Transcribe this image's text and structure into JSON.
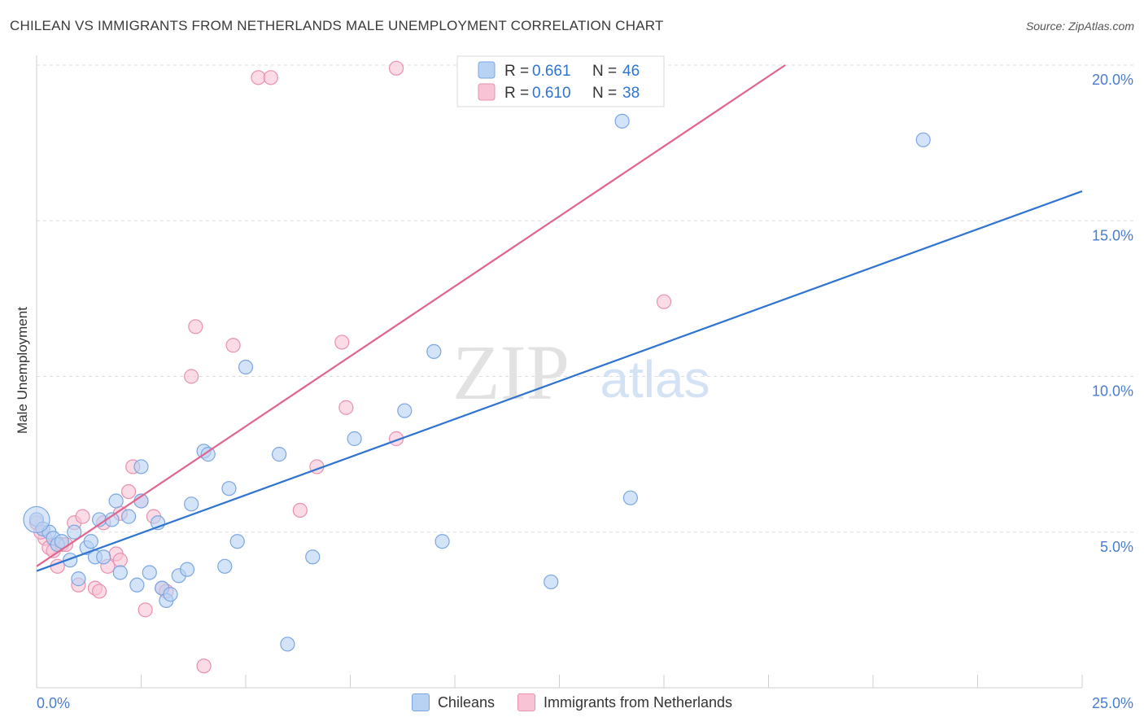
{
  "header": {
    "title": "CHILEAN VS IMMIGRANTS FROM NETHERLANDS MALE UNEMPLOYMENT CORRELATION CHART",
    "source": "Source: ZipAtlas.com"
  },
  "watermark": {
    "zip": "ZIP",
    "atlas": "atlas"
  },
  "colors": {
    "blue_fill": "#b8d2f3",
    "blue_stroke": "#7aa6e0",
    "blue_line": "#2f74d0",
    "pink_fill": "#f7c3d5",
    "pink_stroke": "#e890b0",
    "pink_line": "#e0648e",
    "grid": "#dcdcdc",
    "tick_text": "#4a7cd0"
  },
  "chart_data": {
    "type": "scatter",
    "title": "CHILEAN VS IMMIGRANTS FROM NETHERLANDS MALE UNEMPLOYMENT CORRELATION CHART",
    "xlabel": "",
    "ylabel": "Male Unemployment",
    "xlim": [
      0,
      25
    ],
    "ylim": [
      0,
      20
    ],
    "x_tick_labels": [
      "0.0%",
      "25.0%"
    ],
    "y_ticks": [
      5,
      10,
      15,
      20
    ],
    "y_tick_labels": [
      "5.0%",
      "10.0%",
      "15.0%",
      "20.0%"
    ],
    "legend": [
      {
        "name": "Chileans",
        "r_label": "R =",
        "r": "0.661",
        "n_label": "N =",
        "n": "46"
      },
      {
        "name": "Immigrants from Netherlands",
        "r_label": "R =",
        "r": "0.610",
        "n_label": "N =",
        "n": "38"
      }
    ],
    "series": [
      {
        "name": "Chileans",
        "trend": {
          "x": [
            0,
            25
          ],
          "y": [
            3.75,
            15.95
          ]
        },
        "points": [
          [
            0.0,
            5.4
          ],
          [
            0.15,
            5.1
          ],
          [
            0.3,
            5.0
          ],
          [
            0.4,
            4.8
          ],
          [
            0.5,
            4.6
          ],
          [
            0.6,
            4.7
          ],
          [
            0.8,
            4.1
          ],
          [
            0.9,
            5.0
          ],
          [
            1.0,
            3.5
          ],
          [
            1.2,
            4.5
          ],
          [
            1.3,
            4.7
          ],
          [
            1.4,
            4.2
          ],
          [
            1.5,
            5.4
          ],
          [
            1.6,
            4.2
          ],
          [
            1.8,
            5.4
          ],
          [
            1.9,
            6.0
          ],
          [
            2.0,
            3.7
          ],
          [
            2.2,
            5.5
          ],
          [
            2.5,
            6.0
          ],
          [
            2.4,
            3.3
          ],
          [
            2.5,
            7.1
          ],
          [
            2.7,
            3.7
          ],
          [
            2.9,
            5.3
          ],
          [
            3.0,
            3.2
          ],
          [
            3.1,
            2.8
          ],
          [
            3.2,
            3.0
          ],
          [
            3.4,
            3.6
          ],
          [
            3.6,
            3.8
          ],
          [
            3.7,
            5.9
          ],
          [
            4.0,
            7.6
          ],
          [
            4.1,
            7.5
          ],
          [
            4.5,
            3.9
          ],
          [
            4.6,
            6.4
          ],
          [
            4.8,
            4.7
          ],
          [
            5.0,
            10.3
          ],
          [
            5.8,
            7.5
          ],
          [
            6.0,
            1.4
          ],
          [
            6.6,
            4.2
          ],
          [
            7.6,
            8.0
          ],
          [
            8.8,
            8.9
          ],
          [
            9.5,
            10.8
          ],
          [
            9.7,
            4.7
          ],
          [
            12.3,
            3.4
          ],
          [
            14.0,
            18.2
          ],
          [
            14.2,
            6.1
          ],
          [
            21.2,
            17.6
          ]
        ]
      },
      {
        "name": "Immigrants from Netherlands",
        "trend": {
          "x": [
            0,
            17.9
          ],
          "y": [
            3.9,
            20.0
          ]
        },
        "points": [
          [
            0.0,
            5.3
          ],
          [
            0.2,
            4.8
          ],
          [
            0.3,
            4.5
          ],
          [
            0.4,
            4.4
          ],
          [
            0.5,
            3.9
          ],
          [
            0.6,
            4.6
          ],
          [
            0.7,
            4.6
          ],
          [
            0.9,
            5.3
          ],
          [
            1.0,
            3.3
          ],
          [
            1.1,
            5.5
          ],
          [
            1.4,
            3.2
          ],
          [
            1.5,
            3.1
          ],
          [
            1.6,
            5.3
          ],
          [
            1.7,
            3.9
          ],
          [
            1.9,
            4.3
          ],
          [
            2.0,
            4.1
          ],
          [
            2.0,
            5.6
          ],
          [
            2.2,
            6.3
          ],
          [
            2.3,
            7.1
          ],
          [
            2.5,
            6.0
          ],
          [
            2.6,
            2.5
          ],
          [
            2.8,
            5.5
          ],
          [
            3.0,
            3.2
          ],
          [
            3.1,
            3.1
          ],
          [
            3.7,
            10.0
          ],
          [
            3.8,
            11.6
          ],
          [
            4.0,
            0.7
          ],
          [
            4.7,
            11.0
          ],
          [
            5.3,
            19.6
          ],
          [
            5.6,
            19.6
          ],
          [
            6.3,
            5.7
          ],
          [
            6.7,
            7.1
          ],
          [
            7.3,
            11.1
          ],
          [
            7.4,
            9.0
          ],
          [
            8.6,
            8.0
          ],
          [
            8.6,
            19.9
          ],
          [
            15.0,
            12.4
          ],
          [
            0.1,
            5.0
          ]
        ]
      }
    ]
  }
}
